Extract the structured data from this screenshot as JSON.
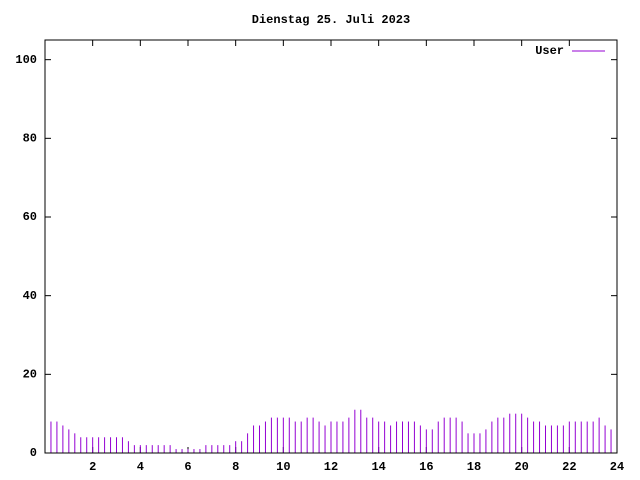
{
  "chart_data": {
    "type": "impulse",
    "title": "Dienstag 25. Juli 2023",
    "series": [
      {
        "name": "User",
        "color": "#9400d3",
        "x": [
          0.25,
          0.5,
          0.75,
          1,
          1.25,
          1.5,
          1.75,
          2,
          2.25,
          2.5,
          2.75,
          3,
          3.25,
          3.5,
          3.75,
          4,
          4.25,
          4.5,
          4.75,
          5,
          5.25,
          5.5,
          5.75,
          6,
          6.25,
          6.5,
          6.75,
          7,
          7.25,
          7.5,
          7.75,
          8,
          8.25,
          8.5,
          8.75,
          9,
          9.25,
          9.5,
          9.75,
          10,
          10.25,
          10.5,
          10.75,
          11,
          11.25,
          11.5,
          11.75,
          12,
          12.25,
          12.5,
          12.75,
          13,
          13.25,
          13.5,
          13.75,
          14,
          14.25,
          14.5,
          14.75,
          15,
          15.25,
          15.5,
          15.75,
          16,
          16.25,
          16.5,
          16.75,
          17,
          17.25,
          17.5,
          17.75,
          18,
          18.25,
          18.5,
          18.75,
          19,
          19.25,
          19.5,
          19.75,
          20,
          20.25,
          20.5,
          20.75,
          21,
          21.25,
          21.5,
          21.75,
          22,
          22.25,
          22.5,
          22.75,
          23,
          23.25,
          23.5,
          23.75,
          24
        ],
        "values": [
          8,
          8,
          7,
          6,
          5,
          4,
          4,
          4,
          4,
          4,
          4,
          4,
          4,
          3,
          2,
          2,
          2,
          2,
          2,
          2,
          2,
          1,
          1,
          1,
          1,
          1,
          2,
          2,
          2,
          2,
          2,
          3,
          3,
          5,
          7,
          7,
          8,
          9,
          9,
          9,
          9,
          8,
          8,
          9,
          9,
          8,
          7,
          8,
          8,
          8,
          9,
          11,
          11,
          9,
          9,
          8,
          8,
          7,
          8,
          8,
          8,
          8,
          7,
          6,
          6,
          8,
          9,
          9,
          9,
          8,
          5,
          5,
          5,
          6,
          8,
          9,
          9,
          10,
          10,
          10,
          9,
          8,
          8,
          7,
          7,
          7,
          7,
          8,
          8,
          8,
          8,
          8,
          9,
          7,
          6,
          5
        ]
      }
    ],
    "xlim": [
      0,
      24
    ],
    "xticks": [
      2,
      4,
      6,
      8,
      10,
      12,
      14,
      16,
      18,
      20,
      22,
      24
    ],
    "ylim": [
      0,
      105
    ],
    "yticks": [
      0,
      20,
      40,
      60,
      80,
      100
    ],
    "legend": "top-right"
  }
}
